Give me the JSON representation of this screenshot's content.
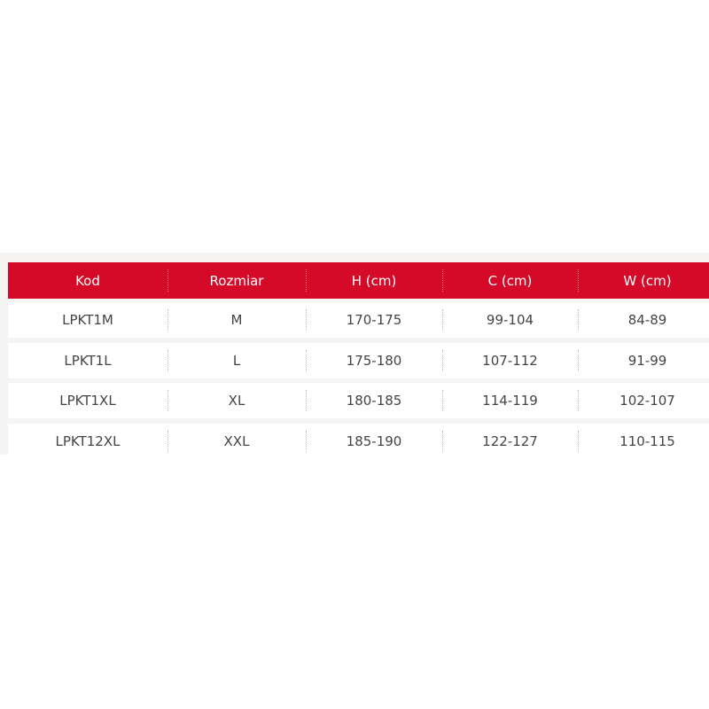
{
  "table": {
    "headers": [
      "Kod",
      "Rozmiar",
      "H (cm)",
      "C (cm)",
      "W (cm)"
    ],
    "rows": [
      [
        "LPKT1M",
        "M",
        "170-175",
        "99-104",
        "84-89"
      ],
      [
        "LPKT1L",
        "L",
        "175-180",
        "107-112",
        "91-99"
      ],
      [
        "LPKT1XL",
        "XL",
        "180-185",
        "114-119",
        "102-107"
      ],
      [
        "LPKT12XL",
        "XXL",
        "185-190",
        "122-127",
        "110-115"
      ]
    ]
  },
  "colors": {
    "header_bg": "#d50a28",
    "header_text": "#ffffff",
    "body_text": "#444444"
  }
}
